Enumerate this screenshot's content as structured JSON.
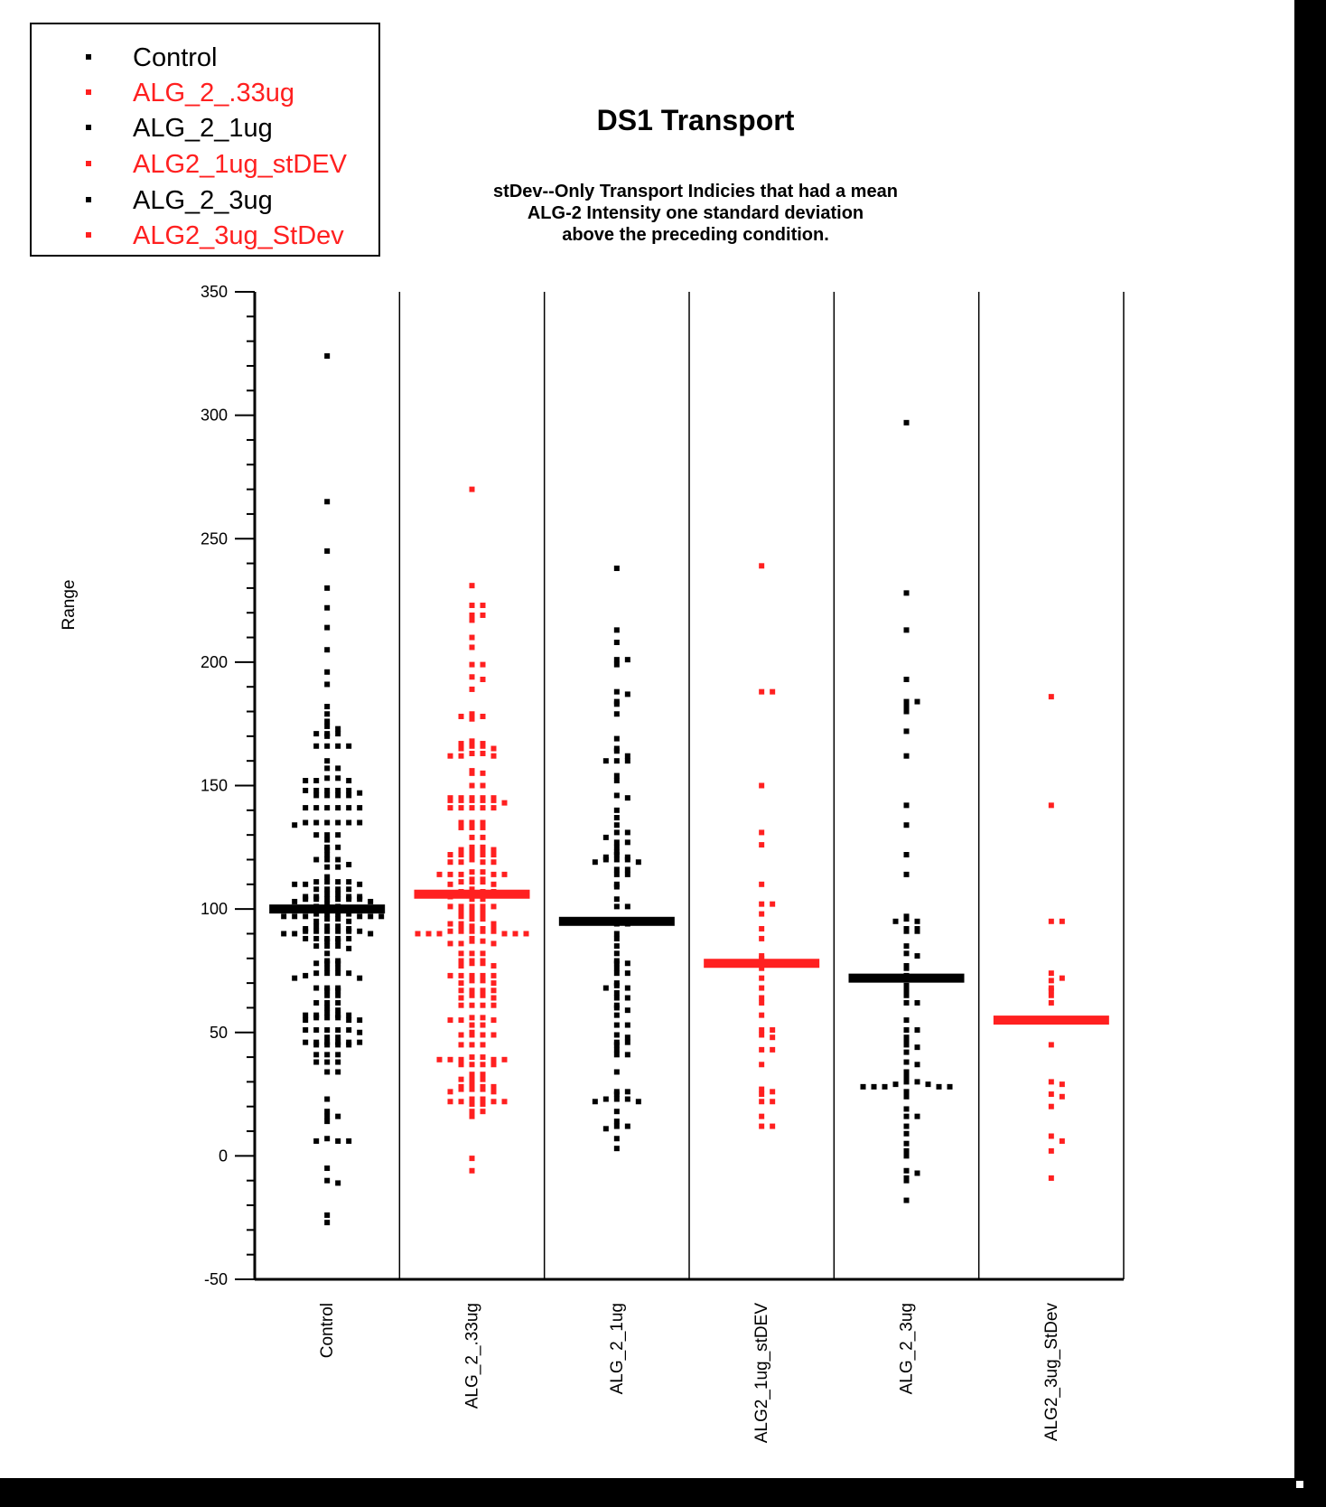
{
  "legend": {
    "items": [
      {
        "label": "Control",
        "color": "#000000"
      },
      {
        "label": "ALG_2_.33ug",
        "color": "#ff2020"
      },
      {
        "label": "ALG_2_1ug",
        "color": "#000000"
      },
      {
        "label": "ALG2_1ug_stDEV",
        "color": "#ff2020"
      },
      {
        "label": "ALG_2_3ug",
        "color": "#000000"
      },
      {
        "label": "ALG2_3ug_StDev",
        "color": "#ff2020"
      }
    ]
  },
  "chart_data": {
    "type": "scatter",
    "title": "DS1 Transport",
    "subtitle": [
      "stDev--Only Transport Indicies that had a mean",
      "ALG-2 Intensity one standard deviation",
      "above the preceding condition."
    ],
    "xlabel": "",
    "ylabel": "Range",
    "ylim": [
      -50,
      350
    ],
    "yticks": [
      "350",
      "300",
      "250",
      "200",
      "150",
      "100",
      "50",
      "0",
      "-50"
    ],
    "categories": [
      "Control",
      "ALG_2_.33ug",
      "ALG_2_1ug",
      "ALG2_1ug_stDEV",
      "ALG_2_3ug",
      "ALG2_3ug_StDev"
    ],
    "legend_position": "top-left",
    "series": [
      {
        "name": "Control",
        "color": "#000000",
        "mean": 100,
        "values": [
          324,
          265,
          245,
          230,
          222,
          214,
          205,
          196,
          191,
          182,
          179,
          176,
          174,
          173,
          171,
          171,
          171,
          170,
          166,
          166,
          166,
          166,
          160,
          157,
          157,
          153,
          153,
          152,
          152,
          152,
          148,
          148,
          148,
          148,
          148,
          147,
          146,
          146,
          146,
          146,
          141,
          141,
          141,
          141,
          141,
          141,
          135,
          135,
          135,
          135,
          135,
          135,
          134,
          130,
          130,
          130,
          128,
          125,
          125,
          124,
          122,
          120,
          120,
          120,
          118,
          117,
          117,
          113,
          111,
          111,
          111,
          111,
          110,
          110,
          110,
          108,
          108,
          108,
          108,
          106,
          106,
          105,
          105,
          105,
          105,
          104,
          104,
          104,
          104,
          104,
          104,
          103,
          103,
          102,
          101,
          101,
          98,
          98,
          98,
          98,
          97,
          97,
          97,
          97,
          97,
          97,
          96,
          96,
          95,
          95,
          93,
          93,
          93,
          92,
          92,
          91,
          91,
          91,
          91,
          91,
          91,
          90,
          90,
          90,
          88,
          88,
          88,
          88,
          88,
          87,
          87,
          85,
          85,
          85,
          84,
          82,
          79,
          79,
          78,
          78,
          78,
          76,
          76,
          74,
          74,
          74,
          74,
          73,
          72,
          72,
          68,
          68,
          68,
          67,
          67,
          65,
          65,
          62,
          62,
          62,
          60,
          59,
          58,
          57,
          57,
          57,
          57,
          56,
          56,
          56,
          55,
          55,
          55,
          51,
          51,
          51,
          51,
          51,
          50,
          48,
          48,
          46,
          46,
          46,
          46,
          46,
          46,
          45,
          45,
          45,
          45,
          41,
          41,
          41,
          38,
          38,
          38,
          34,
          34,
          23,
          18,
          16,
          16,
          14,
          7,
          6,
          6,
          6,
          -5,
          -10,
          -11,
          -24,
          -27
        ]
      },
      {
        "name": "ALG_2_.33ug",
        "color": "#ff2020",
        "mean": 106,
        "values": [
          270,
          231,
          223,
          223,
          219,
          219,
          217,
          210,
          206,
          199,
          199,
          194,
          193,
          189,
          179,
          178,
          178,
          177,
          168,
          167,
          167,
          166,
          166,
          165,
          165,
          163,
          163,
          162,
          162,
          162,
          156,
          155,
          155,
          150,
          150,
          145,
          145,
          145,
          145,
          145,
          144,
          144,
          144,
          144,
          144,
          143,
          141,
          141,
          141,
          141,
          141,
          135,
          135,
          135,
          133,
          133,
          133,
          129,
          129,
          125,
          125,
          124,
          124,
          124,
          124,
          122,
          122,
          122,
          122,
          122,
          120,
          119,
          119,
          119,
          119,
          115,
          115,
          114,
          114,
          114,
          114,
          114,
          112,
          112,
          111,
          111,
          111,
          110,
          110,
          108,
          107,
          107,
          107,
          106,
          106,
          106,
          106,
          105,
          104,
          104,
          101,
          101,
          101,
          101,
          101,
          99,
          99,
          99,
          98,
          98,
          97,
          96,
          96,
          94,
          94,
          94,
          93,
          92,
          92,
          92,
          91,
          91,
          91,
          91,
          91,
          90,
          90,
          90,
          90,
          90,
          90,
          88,
          87,
          87,
          86,
          86,
          86,
          82,
          82,
          82,
          79,
          79,
          79,
          78,
          78,
          77,
          77,
          73,
          73,
          73,
          73,
          73,
          71,
          71,
          70,
          70,
          67,
          67,
          67,
          67,
          65,
          65,
          64,
          64,
          61,
          61,
          61,
          61,
          56,
          56,
          55,
          55,
          55,
          53,
          53,
          50,
          49,
          49,
          49,
          49,
          45,
          45,
          45,
          40,
          40,
          39,
          39,
          39,
          39,
          39,
          37,
          37,
          37,
          37,
          33,
          33,
          31,
          31,
          31,
          29,
          28,
          28,
          28,
          27,
          27,
          27,
          26,
          26,
          23,
          23,
          22,
          22,
          22,
          22,
          21,
          21,
          18,
          18,
          16,
          -1,
          -6
        ]
      },
      {
        "name": "ALG_2_1ug",
        "color": "#000000",
        "mean": 95,
        "values": [
          238,
          213,
          208,
          201,
          201,
          199,
          188,
          187,
          184,
          183,
          179,
          169,
          165,
          164,
          162,
          160,
          160,
          160,
          154,
          152,
          146,
          145,
          140,
          137,
          134,
          131,
          131,
          129,
          127,
          127,
          125,
          123,
          122,
          121,
          121,
          120,
          120,
          120,
          119,
          119,
          116,
          116,
          114,
          114,
          110,
          109,
          104,
          101,
          101,
          94,
          94,
          90,
          88,
          85,
          82,
          79,
          78,
          78,
          76,
          74,
          74,
          70,
          69,
          68,
          68,
          66,
          64,
          64,
          61,
          60,
          59,
          57,
          53,
          53,
          49,
          48,
          46,
          46,
          45,
          43,
          41,
          41,
          34,
          26,
          26,
          25,
          23,
          23,
          23,
          22,
          22,
          18,
          14,
          12,
          12,
          11,
          7,
          3
        ]
      },
      {
        "name": "ALG2_1ug_stDEV",
        "color": "#ff2020",
        "mean": 78,
        "values": [
          239,
          188,
          188,
          150,
          131,
          126,
          110,
          102,
          102,
          98,
          92,
          88,
          81,
          80,
          78,
          76,
          72,
          68,
          64,
          62,
          57,
          51,
          51,
          49,
          48,
          43,
          43,
          37,
          27,
          26,
          25,
          22,
          22,
          16,
          12,
          12
        ]
      },
      {
        "name": "ALG_2_3ug",
        "color": "#000000",
        "mean": 72,
        "values": [
          297,
          228,
          213,
          193,
          184,
          184,
          182,
          180,
          172,
          162,
          142,
          134,
          122,
          114,
          97,
          96,
          95,
          95,
          92,
          92,
          91,
          91,
          85,
          82,
          81,
          77,
          76,
          73,
          72,
          69,
          67,
          65,
          62,
          62,
          55,
          51,
          51,
          48,
          46,
          45,
          44,
          42,
          38,
          37,
          34,
          32,
          30,
          30,
          29,
          29,
          28,
          28,
          28,
          28,
          28,
          26,
          24,
          19,
          16,
          16,
          12,
          9,
          5,
          2,
          0,
          -6,
          -7,
          -9,
          -10,
          -18
        ]
      },
      {
        "name": "ALG2_3ug_StDev",
        "color": "#ff2020",
        "mean": 55,
        "values": [
          186,
          142,
          95,
          95,
          74,
          72,
          71,
          68,
          67,
          65,
          62,
          45,
          30,
          29,
          25,
          24,
          20,
          8,
          6,
          2,
          -9
        ]
      }
    ]
  }
}
